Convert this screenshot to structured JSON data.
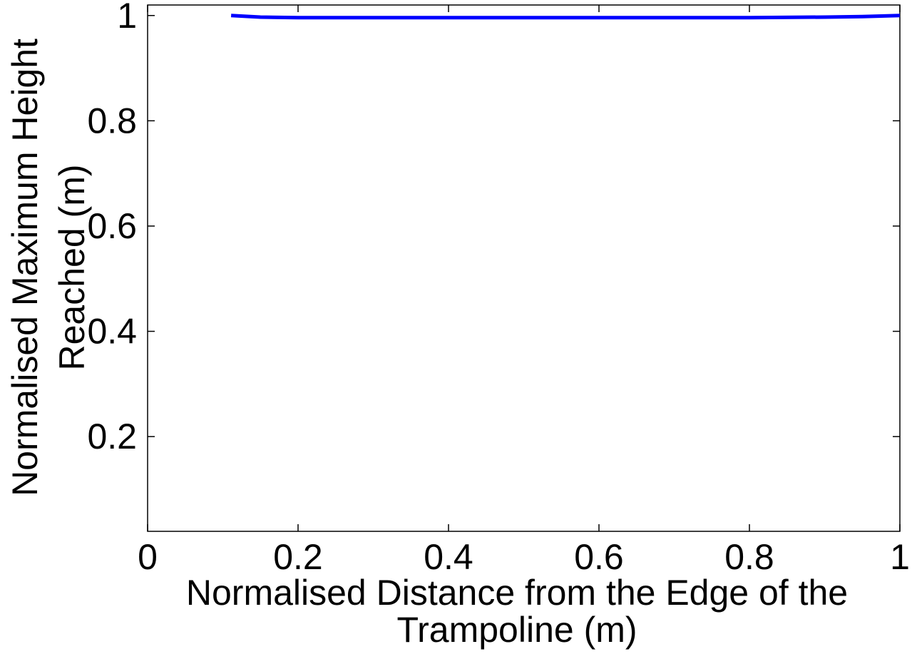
{
  "chart_data": {
    "type": "line",
    "title": "",
    "xlabel_lines": [
      "Normalised Distance from the Edge of the",
      "Trampoline (m)"
    ],
    "ylabel_lines": [
      "Normalised Maximum Height",
      "Reached (m)"
    ],
    "xlim": [
      0,
      1
    ],
    "ylim": [
      0.02,
      1.02
    ],
    "xticks": [
      0,
      0.2,
      0.4,
      0.6,
      0.8,
      1
    ],
    "xtick_labels": [
      "0",
      "0.2",
      "0.4",
      "0.6",
      "0.8",
      "1"
    ],
    "yticks": [
      0.2,
      0.4,
      0.6,
      0.8,
      1
    ],
    "ytick_labels": [
      "0.2",
      "0.4",
      "0.6",
      "0.8",
      "1"
    ],
    "grid": false,
    "legend": "none",
    "series": [
      {
        "color": "#0000ff",
        "x": [
          0.111,
          0.15,
          0.2,
          0.3,
          0.4,
          0.5,
          0.6,
          0.7,
          0.8,
          0.9,
          0.95,
          1.0
        ],
        "y": [
          1.0,
          0.997,
          0.996,
          0.996,
          0.996,
          0.996,
          0.996,
          0.996,
          0.996,
          0.997,
          0.998,
          1.0
        ]
      }
    ]
  }
}
